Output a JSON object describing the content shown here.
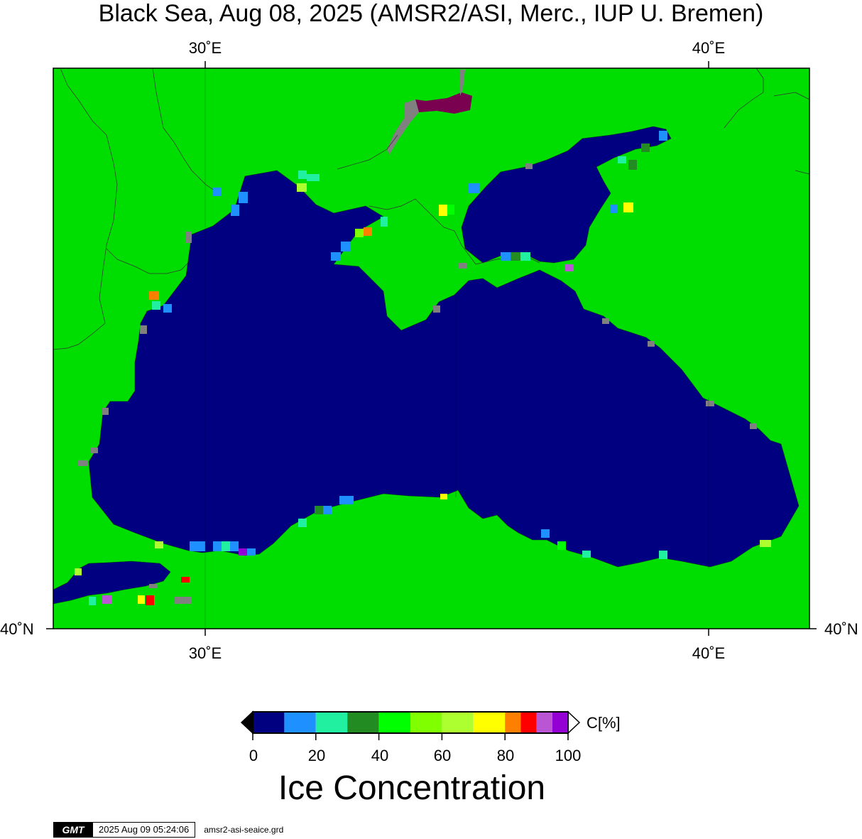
{
  "title": "Black Sea, Aug 08, 2025 (AMSR2/ASI, Merc., IUP U. Bremen)",
  "axes": {
    "lon_top": [
      "30˚E",
      "40˚E"
    ],
    "lon_bottom": [
      "30˚E",
      "40˚E"
    ],
    "lat_left": "40˚N",
    "lat_right": "40˚N"
  },
  "colorbar": {
    "unit_label": "C[%]",
    "ticks": [
      "0",
      "20",
      "40",
      "60",
      "80",
      "100"
    ],
    "colors": [
      "#000080",
      "#1e90ff",
      "#20f0a0",
      "#228b22",
      "#00ff00",
      "#7fff00",
      "#adff2f",
      "#ffff00",
      "#ff7f00",
      "#ff0000",
      "#ba55d3",
      "#9400d3"
    ],
    "under_color": "#000000",
    "over_color": "#ffffff"
  },
  "subtitle": "Ice Concentration",
  "footer": {
    "logo": "GMT",
    "timestamp": "2025 Aug 09 05:24:06",
    "filename": "amsr2-asi-seaice.grd"
  },
  "map_colors": {
    "land": "#00dd00",
    "sea": "#000080",
    "coastal_unknown": "#808080",
    "frame": "#000000"
  }
}
